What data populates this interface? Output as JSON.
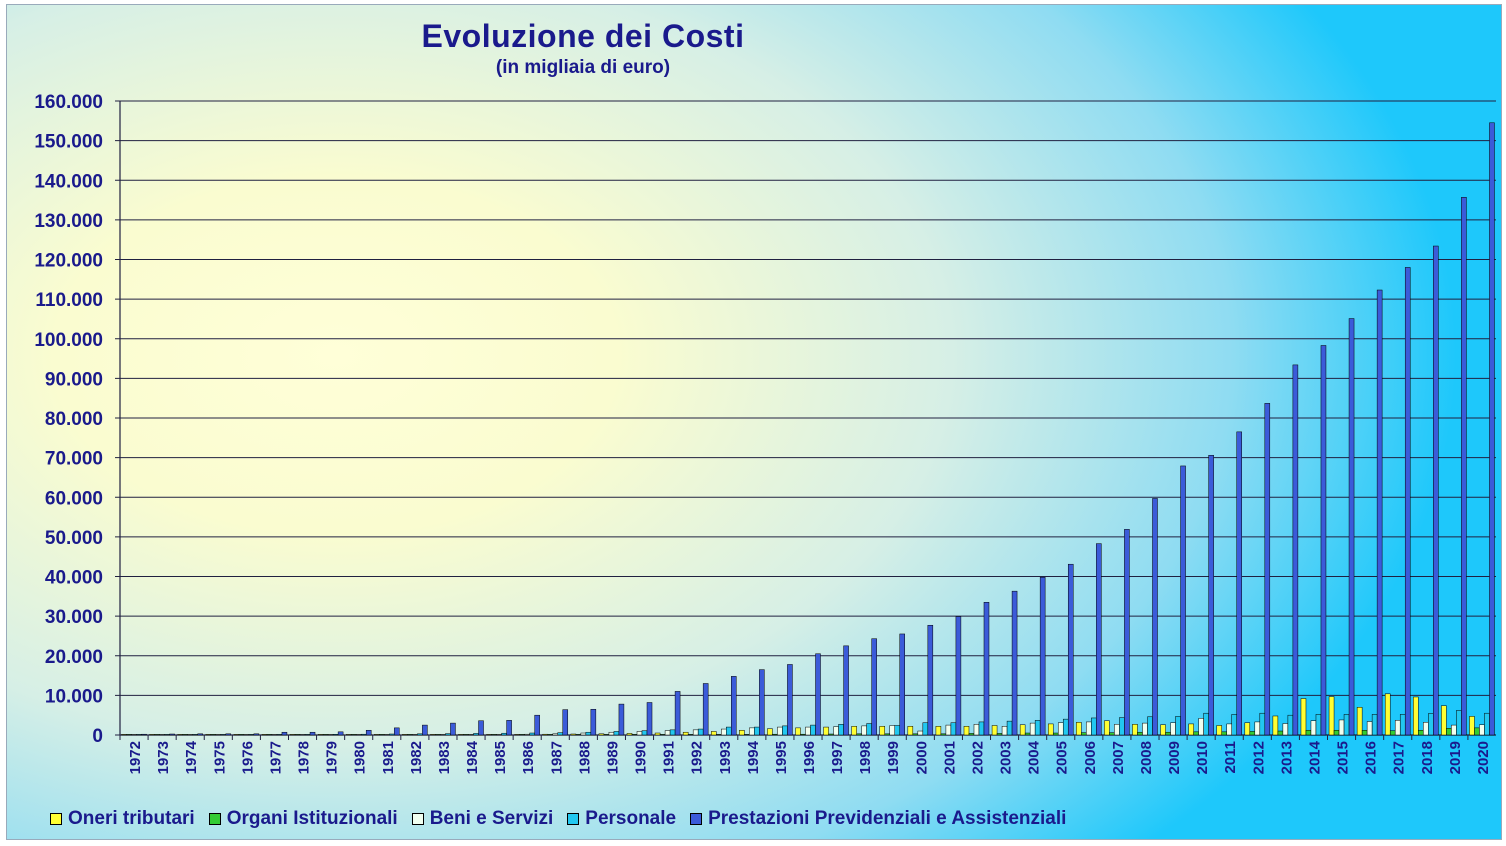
{
  "chart_data": {
    "type": "bar",
    "title": "Evoluzione dei Costi",
    "subtitle": "(in migliaia di euro)",
    "xlabel": "",
    "ylabel": "",
    "ylim": [
      0,
      160000
    ],
    "yticks": [
      0,
      10000,
      20000,
      30000,
      40000,
      50000,
      60000,
      70000,
      80000,
      90000,
      100000,
      110000,
      120000,
      130000,
      140000,
      150000,
      160000
    ],
    "ytick_labels": [
      "0",
      "10.000",
      "20.000",
      "30.000",
      "40.000",
      "50.000",
      "60.000",
      "70.000",
      "80.000",
      "90.000",
      "100.000",
      "110.000",
      "120.000",
      "130.000",
      "140.000",
      "150.000",
      "160.000"
    ],
    "grid": true,
    "legend_position": "bottom",
    "categories": [
      "1972",
      "1973",
      "1974",
      "1975",
      "1976",
      "1977",
      "1978",
      "1979",
      "1980",
      "1981",
      "1982",
      "1983",
      "1984",
      "1985",
      "1986",
      "1987",
      "1988",
      "1989",
      "1990",
      "1991",
      "1992",
      "1993",
      "1994",
      "1995",
      "1996",
      "1997",
      "1998",
      "1999",
      "2000",
      "2001",
      "2002",
      "2003",
      "2004",
      "2005",
      "2006",
      "2007",
      "2008",
      "2009",
      "2010",
      "2011",
      "2012",
      "2013",
      "2014",
      "2015",
      "2016",
      "2017",
      "2018",
      "2019",
      "2020"
    ],
    "series": [
      {
        "name": "Oneri tributari",
        "color": "#ffff33",
        "values": [
          50,
          50,
          50,
          50,
          50,
          60,
          60,
          70,
          80,
          90,
          100,
          110,
          120,
          130,
          150,
          200,
          250,
          300,
          400,
          500,
          700,
          900,
          1200,
          1600,
          1800,
          2000,
          2200,
          2200,
          2200,
          2200,
          2200,
          2400,
          2600,
          2800,
          3200,
          3600,
          2700,
          2600,
          2800,
          2400,
          3100,
          4800,
          9200,
          9700,
          7000,
          10400,
          9600,
          7400,
          4700
        ]
      },
      {
        "name": "Organi Istituzionali",
        "color": "#33cc33",
        "values": [
          10,
          10,
          10,
          10,
          10,
          10,
          10,
          10,
          10,
          10,
          20,
          20,
          20,
          20,
          30,
          30,
          40,
          50,
          60,
          80,
          100,
          120,
          150,
          200,
          200,
          250,
          300,
          300,
          300,
          300,
          400,
          400,
          500,
          500,
          600,
          600,
          700,
          700,
          800,
          800,
          900,
          1000,
          1200,
          1200,
          1200,
          1100,
          1200,
          1700,
          1800
        ]
      },
      {
        "name": "Beni e Servizi",
        "color": "#f0fff0",
        "values": [
          30,
          30,
          30,
          30,
          30,
          40,
          40,
          50,
          60,
          70,
          90,
          110,
          130,
          160,
          200,
          300,
          500,
          700,
          900,
          1100,
          1300,
          1500,
          1800,
          2000,
          2000,
          2100,
          2300,
          2400,
          1000,
          2500,
          2700,
          2200,
          3000,
          3100,
          3300,
          2700,
          3000,
          3100,
          4200,
          2800,
          3300,
          2900,
          3600,
          3800,
          3400,
          3700,
          3200,
          2500,
          2600
        ]
      },
      {
        "name": "Personale",
        "color": "#22c8f0",
        "values": [
          100,
          100,
          100,
          100,
          150,
          150,
          150,
          180,
          200,
          250,
          300,
          350,
          400,
          450,
          500,
          600,
          700,
          900,
          1100,
          1300,
          1500,
          2000,
          2000,
          2300,
          2500,
          2700,
          2900,
          2400,
          3100,
          3100,
          3300,
          3500,
          3700,
          4000,
          4300,
          4400,
          4600,
          4700,
          5500,
          5200,
          5500,
          5000,
          5200,
          5200,
          5200,
          5200,
          5400,
          6200,
          5500
        ]
      },
      {
        "name": "Prestazioni Previdenziali e Assistenziali",
        "color": "#3b5bd9",
        "values": [
          200,
          250,
          300,
          300,
          300,
          700,
          700,
          800,
          1200,
          1800,
          2500,
          3000,
          3600,
          3700,
          5000,
          6400,
          6500,
          7800,
          8200,
          11000,
          13000,
          14800,
          16500,
          17800,
          20500,
          22500,
          24300,
          25500,
          27700,
          29900,
          33500,
          36300,
          39800,
          43100,
          48300,
          51900,
          59700,
          67900,
          70600,
          76500,
          83700,
          93400,
          98300,
          105100,
          112300,
          118000,
          123400,
          135700,
          154500
        ]
      }
    ]
  }
}
